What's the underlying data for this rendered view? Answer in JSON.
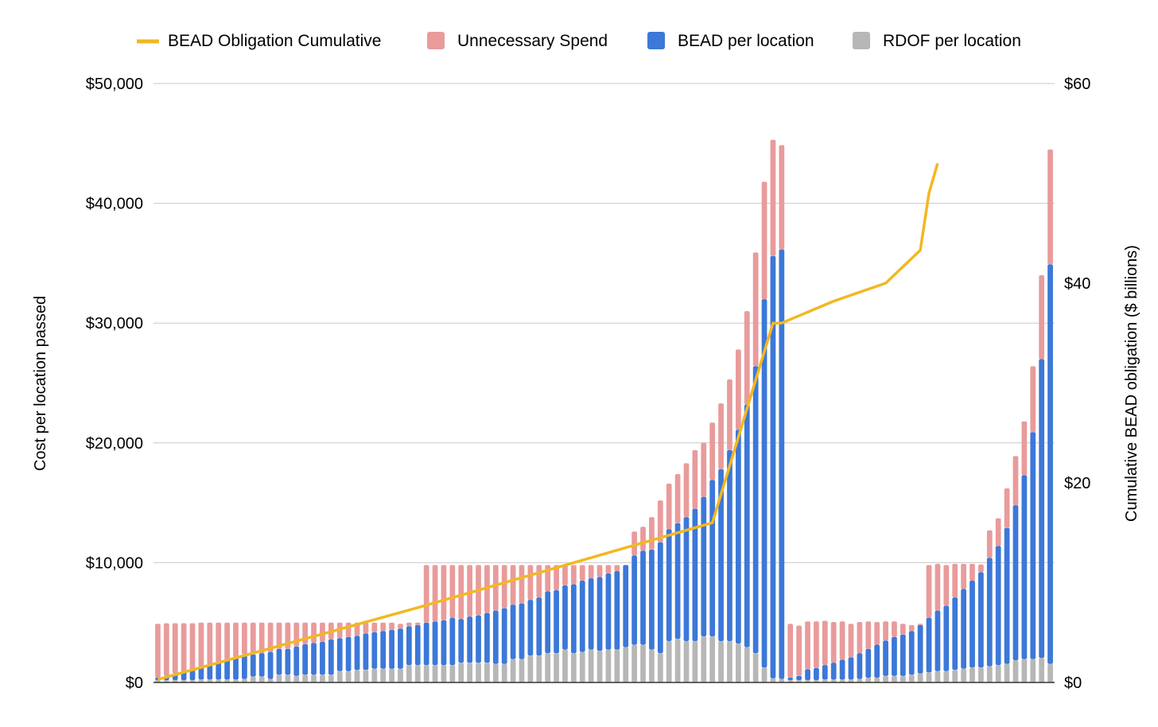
{
  "colors": {
    "line": "#f2b821",
    "unnecessary": "#e99b9b",
    "bead": "#3c78d8",
    "rdof": "#b7b7b7",
    "grid": "#c9c9c9",
    "axis": "#333333"
  },
  "chart_data": {
    "type": "bar",
    "stacked": true,
    "legend_position": "top",
    "grid": true,
    "xlabel": "",
    "ylabel": "Cost per location passed",
    "y2label": "Cumulative BEAD obligation ($ billions)",
    "ylim": [
      0,
      50000
    ],
    "y2lim": [
      0,
      60
    ],
    "yticks": [
      "$0",
      "$10,000",
      "$20,000",
      "$30,000",
      "$40,000",
      "$50,000"
    ],
    "y2ticks": [
      "$0",
      "$20",
      "$40",
      "$60"
    ],
    "legend": [
      {
        "label": "BEAD Obligation Cumulative",
        "kind": "line"
      },
      {
        "label": "Unnecessary Spend",
        "kind": "bar"
      },
      {
        "label": "BEAD per location",
        "kind": "bar"
      },
      {
        "label": "RDOF per location",
        "kind": "bar"
      }
    ],
    "series": [
      {
        "name": "RDOF per location",
        "values": [
          200,
          200,
          200,
          200,
          200,
          250,
          250,
          250,
          250,
          250,
          300,
          500,
          500,
          300,
          650,
          650,
          550,
          650,
          650,
          650,
          650,
          950,
          950,
          1050,
          1050,
          1150,
          1150,
          1150,
          1150,
          1450,
          1450,
          1450,
          1450,
          1450,
          1450,
          1650,
          1650,
          1650,
          1650,
          1550,
          1550,
          1950,
          1950,
          2250,
          2250,
          2450,
          2450,
          2750,
          2450,
          2550,
          2750,
          2650,
          2750,
          2750,
          2950,
          3150,
          3150,
          2750,
          2450,
          3450,
          3650,
          3450,
          3450,
          3850,
          3850,
          3450,
          3450,
          3250,
          2950,
          2450,
          1250,
          350,
          300,
          200,
          200,
          200,
          200,
          250,
          250,
          250,
          250,
          300,
          400,
          400,
          550,
          550,
          550,
          650,
          750,
          850,
          950,
          950,
          1050,
          1150,
          1250,
          1250,
          1350,
          1450,
          1550,
          1850,
          1950,
          1950,
          2050,
          1550
        ]
      },
      {
        "name": "BEAD per location",
        "values": [
          200,
          350,
          550,
          650,
          850,
          1050,
          1250,
          1450,
          1650,
          1850,
          2050,
          1850,
          1950,
          2250,
          2150,
          2150,
          2450,
          2550,
          2650,
          2750,
          2950,
          2750,
          2850,
          2850,
          3050,
          3050,
          3150,
          3250,
          3350,
          3250,
          3350,
          3550,
          3650,
          3750,
          3950,
          3650,
          3850,
          3950,
          4150,
          4450,
          4650,
          4550,
          4650,
          4650,
          4850,
          5150,
          5250,
          5350,
          5750,
          5950,
          5950,
          6150,
          6350,
          6550,
          6850,
          7450,
          7850,
          8350,
          9250,
          9350,
          9650,
          10350,
          11050,
          11650,
          13050,
          14350,
          15950,
          17850,
          20250,
          23950,
          30750,
          35250,
          35850,
          200,
          350,
          900,
          1000,
          1200,
          1400,
          1650,
          1850,
          2150,
          2400,
          2750,
          2950,
          3250,
          3450,
          3650,
          4050,
          4550,
          5050,
          5450,
          6050,
          6650,
          7250,
          7950,
          9050,
          9950,
          11350,
          12950,
          15350,
          18950,
          24950,
          33350
        ]
      },
      {
        "name": "Unnecessary Spend",
        "values": [
          4500,
          4400,
          4200,
          4100,
          3900,
          3700,
          3500,
          3300,
          3100,
          2900,
          2650,
          2650,
          2550,
          2450,
          2200,
          2200,
          2000,
          1800,
          1700,
          1600,
          1400,
          1300,
          1200,
          1100,
          900,
          800,
          700,
          600,
          400,
          300,
          200,
          4800,
          4700,
          4600,
          4400,
          4500,
          4300,
          4200,
          4000,
          3800,
          3600,
          3300,
          3200,
          2900,
          2700,
          2200,
          2100,
          1700,
          1600,
          1300,
          1100,
          1000,
          700,
          500,
          0,
          2000,
          2000,
          2700,
          3500,
          3800,
          4100,
          4500,
          4900,
          4500,
          4800,
          5500,
          5900,
          6700,
          7800,
          9500,
          9800,
          9700,
          8700,
          4500,
          4200,
          4000,
          3900,
          3700,
          3400,
          3200,
          2800,
          2600,
          2300,
          1900,
          1600,
          1300,
          900,
          500,
          100,
          4400,
          3900,
          3400,
          2800,
          2100,
          1400,
          650,
          2300,
          2300,
          3300,
          4100,
          4500,
          5500,
          7000,
          9600
        ]
      },
      {
        "name": "BEAD Obligation Cumulative",
        "x_breaks": [
          0,
          30,
          64,
          71,
          72,
          78,
          84,
          88,
          89,
          90
        ],
        "values": [
          0.3,
          7.5,
          16,
          36,
          36,
          38.2,
          40,
          43.3,
          49,
          52
        ]
      }
    ]
  }
}
